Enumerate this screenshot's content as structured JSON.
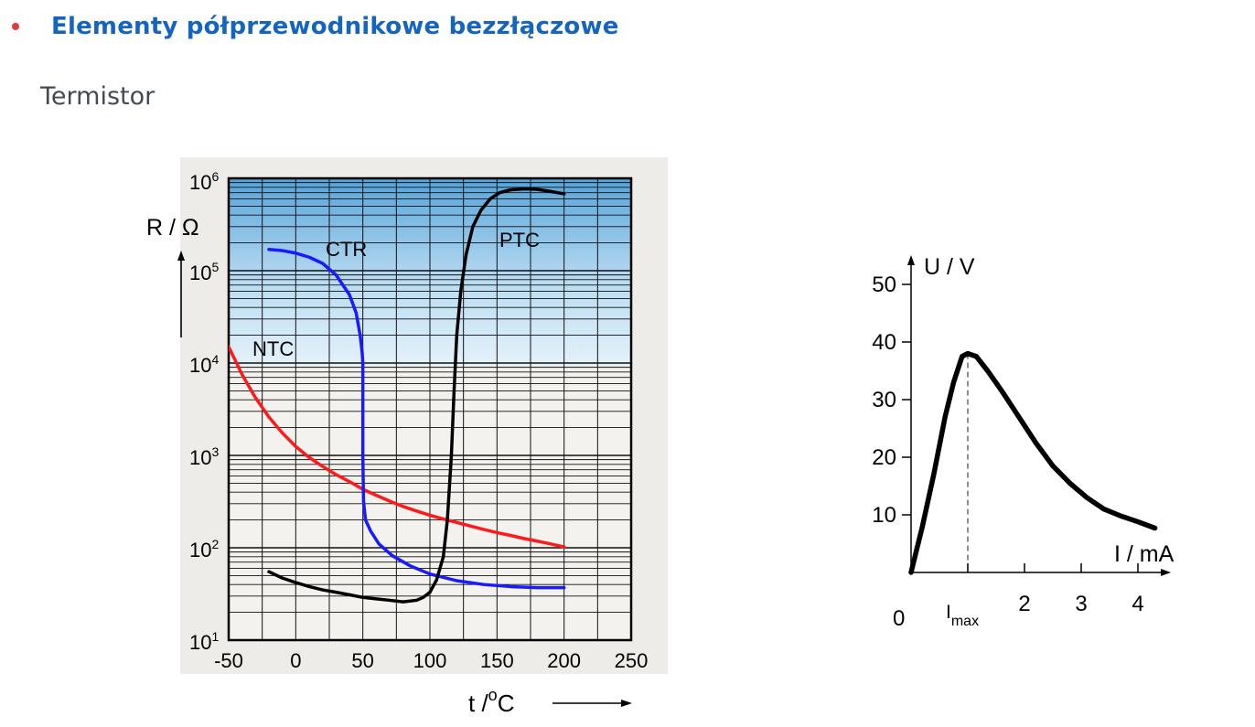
{
  "heading": "Elementy półprzewodnikowe bezzłączowe",
  "subheading": "Termistor",
  "colors": {
    "heading": "#1565c0",
    "bullet": "#e53935",
    "ntc": "#ff1a1a",
    "ctr": "#1a1aff",
    "ptc": "#000000"
  },
  "chart_data": [
    {
      "type": "line",
      "title": "",
      "xlabel_main": "t /",
      "xlabel_sup": "o",
      "xlabel_unit": "C",
      "ylabel": "R / Ω",
      "xlim": [
        -50,
        250
      ],
      "ylim": [
        10,
        1000000
      ],
      "yscale": "log",
      "grid": true,
      "xticks": [
        "-50",
        "0",
        "50",
        "100",
        "150",
        "200",
        "250"
      ],
      "yticks": [
        {
          "base": "10",
          "exp": "1"
        },
        {
          "base": "10",
          "exp": "2"
        },
        {
          "base": "10",
          "exp": "3"
        },
        {
          "base": "10",
          "exp": "4"
        },
        {
          "base": "10",
          "exp": "5"
        },
        {
          "base": "10",
          "exp": "6"
        }
      ],
      "series": [
        {
          "name": "NTC",
          "x": [
            -50,
            -40,
            -30,
            -20,
            -10,
            0,
            10,
            20,
            30,
            40,
            50,
            60,
            70,
            80,
            90,
            100,
            110,
            120,
            130,
            140,
            150,
            160,
            170,
            180,
            190,
            200
          ],
          "y": [
            15000,
            7500,
            4200,
            2600,
            1750,
            1250,
            950,
            760,
            620,
            520,
            430,
            370,
            320,
            280,
            250,
            225,
            205,
            188,
            172,
            158,
            146,
            136,
            126,
            118,
            110,
            102
          ]
        },
        {
          "name": "CTR",
          "x": [
            -20,
            -10,
            0,
            10,
            20,
            30,
            40,
            45,
            48,
            49.5,
            50,
            50,
            50,
            50.5,
            52,
            56,
            62,
            72,
            85,
            100,
            120,
            140,
            160,
            180,
            200
          ],
          "y": [
            170000,
            165000,
            155000,
            140000,
            120000,
            90000,
            55000,
            35000,
            20000,
            13000,
            10000,
            3000,
            1000,
            320,
            200,
            150,
            110,
            82,
            64,
            52,
            44,
            40,
            38,
            37,
            37
          ]
        },
        {
          "name": "PTC",
          "x": [
            -20,
            -10,
            0,
            10,
            20,
            30,
            40,
            50,
            60,
            70,
            80,
            90,
            95,
            100,
            105,
            110,
            113,
            116,
            118,
            120,
            123,
            127,
            132,
            138,
            145,
            152,
            160,
            170,
            180,
            190,
            200
          ],
          "y": [
            55,
            47,
            42,
            38,
            35,
            33,
            31,
            29,
            28,
            27,
            26,
            27,
            29,
            33,
            45,
            80,
            200,
            1000,
            5000,
            20000,
            60000,
            150000,
            300000,
            450000,
            600000,
            700000,
            750000,
            770000,
            760000,
            720000,
            680000
          ]
        }
      ],
      "series_labels": [
        "NTC",
        "CTR",
        "PTC"
      ]
    },
    {
      "type": "line",
      "title": "",
      "xlabel": "I / mA",
      "ylabel": "U / V",
      "xlim": [
        0,
        4.5
      ],
      "ylim": [
        0,
        55
      ],
      "origin_label": "0",
      "xticks": [
        "2",
        "3",
        "4"
      ],
      "yticks": [
        "10",
        "20",
        "30",
        "40",
        "50"
      ],
      "marker_label_base": "I",
      "marker_label_sub": "max",
      "marker_x": 1.0,
      "series": [
        {
          "name": "",
          "x": [
            0,
            0.2,
            0.4,
            0.6,
            0.75,
            0.9,
            1.0,
            1.15,
            1.35,
            1.6,
            1.9,
            2.2,
            2.5,
            2.8,
            3.1,
            3.4,
            3.7,
            4.0,
            4.3
          ],
          "y": [
            0,
            8,
            17,
            27,
            33,
            37.5,
            38,
            37.5,
            35,
            31.5,
            27,
            22.5,
            18.5,
            15.5,
            13,
            11,
            9.8,
            8.8,
            7.7
          ]
        }
      ]
    }
  ]
}
